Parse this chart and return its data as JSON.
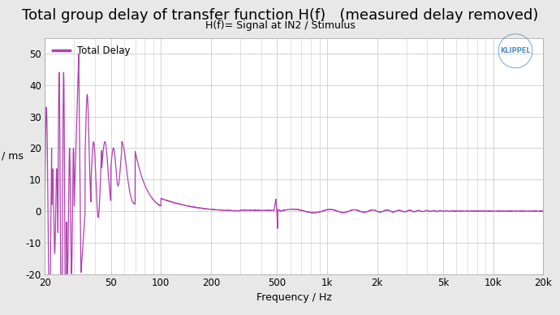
{
  "title": "Total group delay of transfer function H(f)   (measured delay removed)",
  "subtitle": "H(f)= Signal at IN2 / Stimulus",
  "xlabel": "Frequency / Hz",
  "ylabel": "/ ms",
  "legend_label": "Total Delay",
  "line_color": "#b040b0",
  "background_color": "#e8e8e8",
  "plot_background": "#ffffff",
  "grid_color": "#cccccc",
  "ylim": [
    -20,
    55
  ],
  "yticks": [
    -20,
    -10,
    0,
    10,
    20,
    30,
    40,
    50
  ],
  "xtick_labels": [
    "20",
    "50",
    "100",
    "200",
    "500",
    "1k",
    "2k",
    "5k",
    "10k",
    "20k"
  ],
  "xtick_values": [
    20,
    50,
    100,
    200,
    500,
    1000,
    2000,
    5000,
    10000,
    20000
  ],
  "klippel_color": "#5090c0",
  "title_fontsize": 13,
  "subtitle_fontsize": 9,
  "axis_fontsize": 9,
  "tick_fontsize": 8.5
}
